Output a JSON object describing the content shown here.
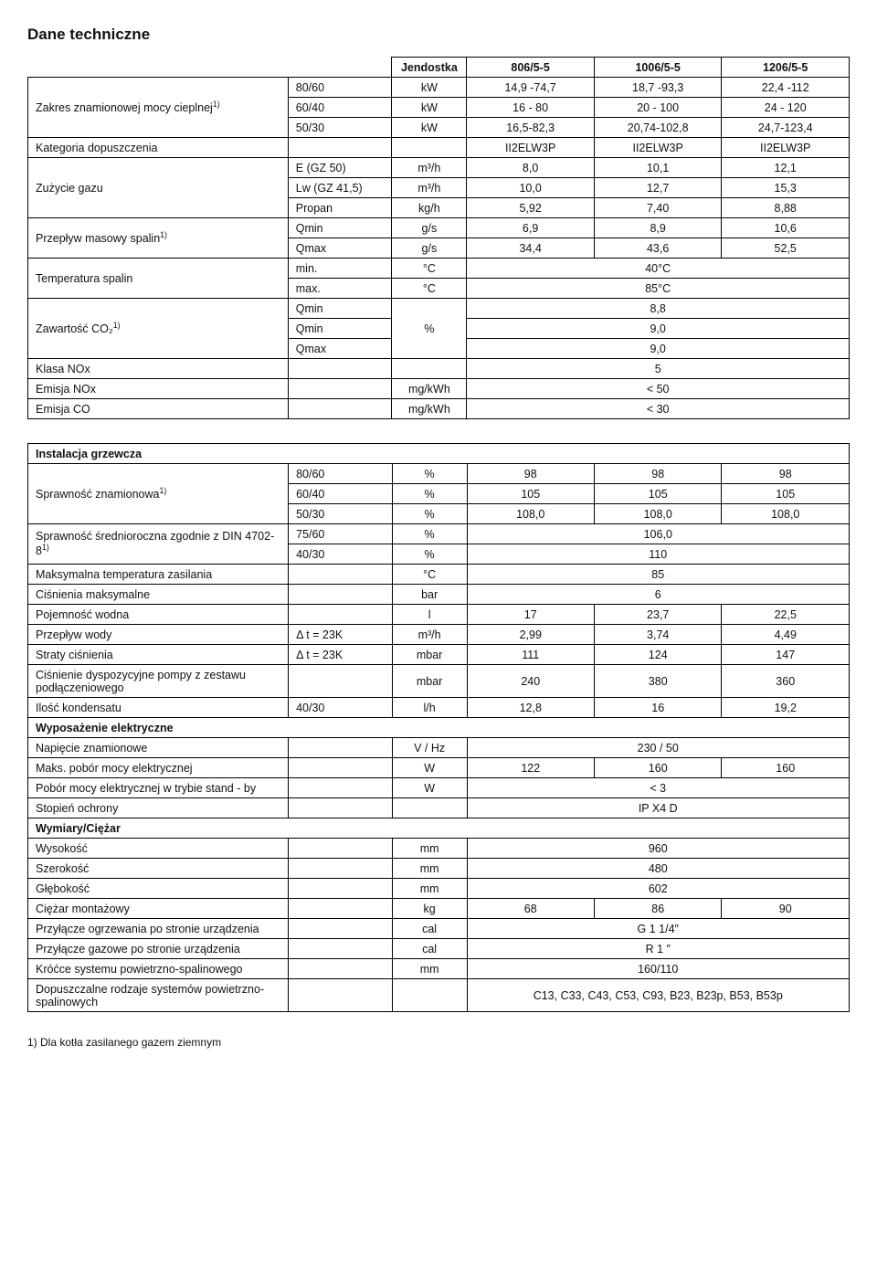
{
  "page_title": "Dane techniczne",
  "table1": {
    "headers": [
      "Jendostka",
      "806/5-5",
      "1006/5-5",
      "1206/5-5"
    ],
    "rows": [
      {
        "label": "Zakres znamionowej mocy cieplnej",
        "sup": "1)",
        "rowspan": 3,
        "sub": "80/60",
        "unit": "kW",
        "v": [
          "14,9 -74,7",
          "18,7 -93,3",
          "22,4 -112"
        ]
      },
      {
        "sub": "60/40",
        "unit": "kW",
        "v": [
          "16 - 80",
          "20 - 100",
          "24 - 120"
        ]
      },
      {
        "sub": "50/30",
        "unit": "kW",
        "v": [
          "16,5-82,3",
          "20,74-102,8",
          "24,7-123,4"
        ]
      },
      {
        "label": "Kategoria dopuszczenia",
        "sub": "",
        "unit": "",
        "v": [
          "II2ELW3P",
          "II2ELW3P",
          "II2ELW3P"
        ]
      },
      {
        "label": "Zużycie gazu",
        "rowspan": 3,
        "sub": "E (GZ 50)",
        "unit": "m³/h",
        "v": [
          "8,0",
          "10,1",
          "12,1"
        ]
      },
      {
        "sub": "Lw (GZ 41,5)",
        "unit": "m³/h",
        "v": [
          "10,0",
          "12,7",
          "15,3"
        ]
      },
      {
        "sub": "Propan",
        "unit": "kg/h",
        "v": [
          "5,92",
          "7,40",
          "8,88"
        ]
      },
      {
        "label": "Przepływ masowy spalin",
        "sup": "1)",
        "rowspan": 2,
        "sub": "Qmin",
        "unit": "g/s",
        "v": [
          "6,9",
          "8,9",
          "10,6"
        ]
      },
      {
        "sub": "Qmax",
        "unit": "g/s",
        "v": [
          "34,4",
          "43,6",
          "52,5"
        ]
      },
      {
        "label": "Temperatura spalin",
        "rowspan": 2,
        "sub": "min.",
        "unit": "°C",
        "span": "40°C"
      },
      {
        "sub": "max.",
        "unit": "°C",
        "span": "85°C"
      },
      {
        "label": "Zawartość CO₂",
        "sup": "1)",
        "rowspan": 3,
        "sub": "Qmin",
        "unit": "",
        "unitspan": 3,
        "unitlabel": "%",
        "span": "8,8"
      },
      {
        "sub": "Qmin",
        "span": "9,0"
      },
      {
        "sub": "Qmax",
        "span": "9,0"
      },
      {
        "label": "Klasa NOx",
        "sub": "",
        "unit": "",
        "span": "5"
      },
      {
        "label": "Emisja NOx",
        "sub": "",
        "unit": "mg/kWh",
        "span": "< 50"
      },
      {
        "label": "Emisja CO",
        "sub": "",
        "unit": "mg/kWh",
        "span": "< 30"
      }
    ]
  },
  "table2": {
    "header": "Instalacja grzewcza",
    "rows": [
      {
        "label": "Sprawność znamionowa",
        "sup": "1)",
        "rowspan": 3,
        "sub": "80/60",
        "unit": "%",
        "v": [
          "98",
          "98",
          "98"
        ]
      },
      {
        "sub": "60/40",
        "unit": "%",
        "v": [
          "105",
          "105",
          "105"
        ]
      },
      {
        "sub": "50/30",
        "unit": "%",
        "v": [
          "108,0",
          "108,0",
          "108,0"
        ]
      },
      {
        "label": "Sprawność średnioroczna zgodnie z  DIN 4702-8",
        "sup": "1)",
        "rowspan": 2,
        "sub": "75/60",
        "unit": "%",
        "span": "106,0"
      },
      {
        "sub": "40/30",
        "unit": "%",
        "span": "110"
      },
      {
        "label": "Maksymalna temperatura zasilania",
        "sub": "",
        "unit": "°C",
        "span": "85"
      },
      {
        "label": "Ciśnienia maksymalne",
        "sub": "",
        "unit": "bar",
        "span": "6"
      },
      {
        "label": "Pojemność wodna",
        "sub": "",
        "unit": "l",
        "v": [
          "17",
          "23,7",
          "22,5"
        ]
      },
      {
        "label": "Przepływ wody",
        "sub": "Δ t = 23K",
        "unit": "m³/h",
        "v": [
          "2,99",
          "3,74",
          "4,49"
        ]
      },
      {
        "label": "Straty ciśnienia",
        "sub": "Δ t = 23K",
        "unit": "mbar",
        "v": [
          "111",
          "124",
          "147"
        ]
      },
      {
        "label": "Ciśnienie dyspozycyjne pompy z zestawu podłączeniowego",
        "sub": "",
        "unit": "mbar",
        "v": [
          "240",
          "380",
          "360"
        ]
      },
      {
        "label": "Ilość kondensatu",
        "sub": "40/30",
        "unit": "l/h",
        "v": [
          "12,8",
          "16",
          "19,2"
        ]
      },
      {
        "section": "Wyposażenie elektryczne"
      },
      {
        "label": "Napięcie znamionowe",
        "sub": "",
        "unit": "V / Hz",
        "span": "230 / 50"
      },
      {
        "label": "Maks. pobór mocy elektrycznej",
        "sub": "",
        "unit": "W",
        "v": [
          "122",
          "160",
          "160"
        ]
      },
      {
        "label": "Pobór mocy elektrycznej w trybie stand - by",
        "sub": "",
        "unit": "W",
        "span": "< 3"
      },
      {
        "label": "Stopień ochrony",
        "sub": "",
        "unit": "",
        "span": "IP X4 D"
      },
      {
        "section": "Wymiary/Ciężar"
      },
      {
        "label": "Wysokość",
        "sub": "",
        "unit": "mm",
        "span": "960"
      },
      {
        "label": "Szerokość",
        "sub": "",
        "unit": "mm",
        "span": "480"
      },
      {
        "label": "Głębokość",
        "sub": "",
        "unit": "mm",
        "span": "602"
      },
      {
        "label": "Ciężar montażowy",
        "sub": "",
        "unit": "kg",
        "v": [
          "68",
          "86",
          "90"
        ]
      },
      {
        "label": "Przyłącze ogrzewania po stronie urządzenia",
        "sub": "",
        "unit": "cal",
        "span": "G 1 1/4″"
      },
      {
        "label": "Przyłącze gazowe po stronie urządzenia",
        "sub": "",
        "unit": "cal",
        "span": "R 1 ″"
      },
      {
        "label": "Króćce systemu powietrzno-spalinowego",
        "sub": "",
        "unit": "mm",
        "span": "160/110"
      },
      {
        "label": "Dopuszczalne rodzaje systemów powietrzno-spalinowych",
        "sub": "",
        "unit": "",
        "span": "C13, C33, C43, C53, C93, B23, B23p, B53, B53p"
      }
    ]
  },
  "footnote": "1) Dla kotła zasilanego gazem ziemnym"
}
